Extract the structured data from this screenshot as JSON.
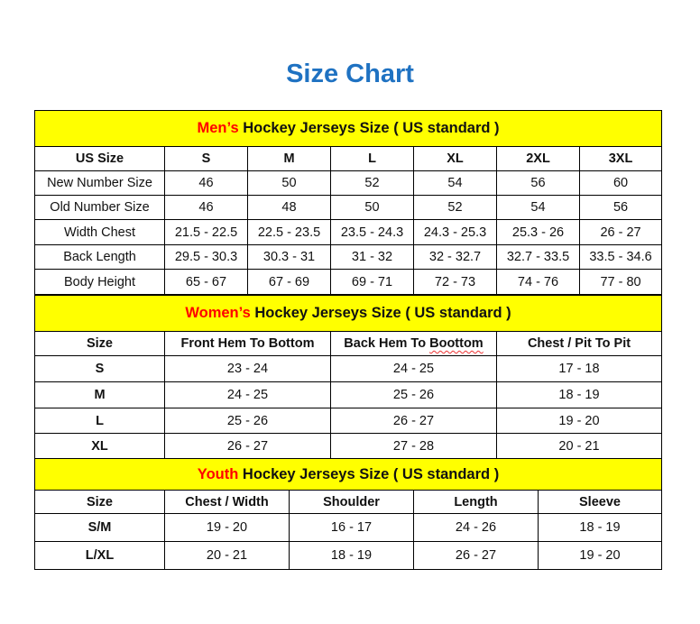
{
  "title": "Size Chart",
  "colors": {
    "title": "#1f72c2",
    "banner": "#ffff00",
    "highlight": "#ff0000"
  },
  "men": {
    "highlight": "Men’s",
    "banner_rest": " Hockey Jerseys Size ( US standard )",
    "header": [
      "US Size",
      "S",
      "M",
      "L",
      "XL",
      "2XL",
      "3XL"
    ],
    "rows": [
      [
        "New Number Size",
        "46",
        "50",
        "52",
        "54",
        "56",
        "60"
      ],
      [
        "Old Number Size",
        "46",
        "48",
        "50",
        "52",
        "54",
        "56"
      ],
      [
        "Width Chest",
        "21.5 - 22.5",
        "22.5 - 23.5",
        "23.5 - 24.3",
        "24.3 - 25.3",
        "25.3 - 26",
        "26 - 27"
      ],
      [
        "Back Length",
        "29.5 - 30.3",
        "30.3 - 31",
        "31 - 32",
        "32 - 32.7",
        "32.7 - 33.5",
        "33.5 - 34.6"
      ],
      [
        "Body Height",
        "65 - 67",
        "67 - 69",
        "69 - 71",
        "72 - 73",
        "74 - 76",
        "77 - 80"
      ]
    ]
  },
  "women": {
    "highlight": "Women’s",
    "banner_rest": " Hockey Jerseys Size ( US standard )",
    "header": [
      "Size",
      "Front Hem To Bottom",
      "Back Hem To Boottom",
      "Chest / Pit To Pit"
    ],
    "rows": [
      [
        "S",
        "23 - 24",
        "24 - 25",
        "17 - 18"
      ],
      [
        "M",
        "24 - 25",
        "25 - 26",
        "18 - 19"
      ],
      [
        "L",
        "25 - 26",
        "26 - 27",
        "19 - 20"
      ],
      [
        "XL",
        "26 - 27",
        "27 - 28",
        "20 - 21"
      ]
    ]
  },
  "youth": {
    "highlight": "Youth",
    "banner_rest": " Hockey Jerseys Size ( US standard )",
    "header": [
      "Size",
      "Chest / Width",
      "Shoulder",
      "Length",
      "Sleeve"
    ],
    "rows": [
      [
        "S/M",
        "19 - 20",
        "16 - 17",
        "24 - 26",
        "18 - 19"
      ],
      [
        "L/XL",
        "20 - 21",
        "18 - 19",
        "26 - 27",
        "19 - 20"
      ]
    ]
  }
}
